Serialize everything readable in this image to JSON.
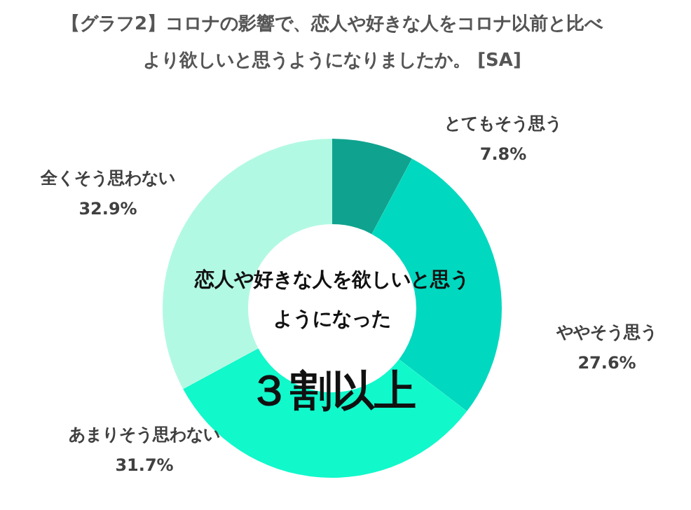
{
  "chart_data": {
    "type": "donut",
    "title": "【グラフ2】コロナの影響で、恋人や好きな人をコロナ以前と比べより欲しいと思うようになりましたか。 [SA]",
    "categories": [
      "とてもそう思う",
      "ややそう思う",
      "あまりそう思わない",
      "全くそう思わない"
    ],
    "values": [
      7.8,
      27.6,
      31.7,
      32.9
    ],
    "value_labels": [
      "7.8%",
      "27.6%",
      "31.7%",
      "32.9%"
    ],
    "colors": [
      "#0fa38f",
      "#00d8bf",
      "#11f8cb",
      "#b2f9e3"
    ],
    "annotations": [
      "恋人や好きな人を欲しいと思うようになった",
      "３割以上"
    ],
    "legend": false
  }
}
